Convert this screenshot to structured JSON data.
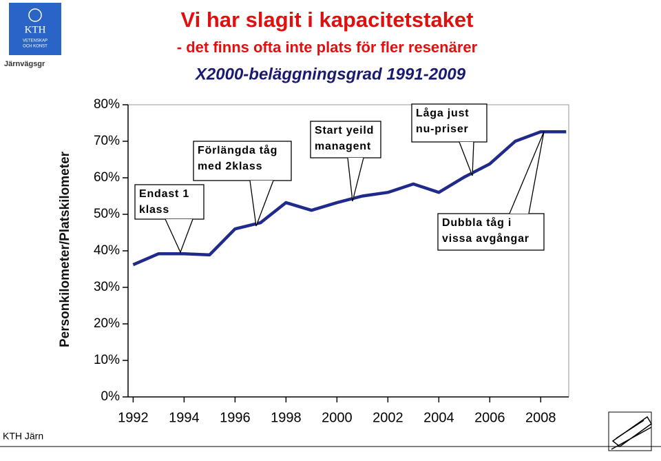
{
  "header": {
    "logo_text": [
      "KTH",
      "VETENSKAP",
      "OCH KONST"
    ],
    "dept": "Järnvägsgr",
    "title": "Vi har slagit i kapacitetstaket",
    "subtitle": "- det finns ofta inte plats för fler resenärer"
  },
  "chart_data": {
    "type": "line",
    "title": "X2000-beläggningsgrad 1991-2009",
    "y_label": "Personkilometer/Platskilometer",
    "x": [
      1992,
      1993,
      1994,
      1995,
      1996,
      1997,
      1998,
      1999,
      2000,
      2001,
      2002,
      2003,
      2004,
      2005,
      2006,
      2007,
      2008,
      2009
    ],
    "series": [
      {
        "color": "#1f2a8a",
        "values": [
          36.2,
          39.2,
          39.2,
          38.9,
          46,
          47.7,
          53.2,
          51.1,
          53.2,
          55,
          56,
          58.3,
          56,
          60.2,
          63.8,
          70,
          72.6,
          72.6
        ]
      }
    ],
    "xlim": [
      1991.8,
      2009.1
    ],
    "xticks": [
      1992,
      1994,
      1996,
      1998,
      2000,
      2002,
      2004,
      2006,
      2008
    ],
    "ylim": [
      0,
      80
    ],
    "yticks": [
      {
        "value": 0,
        "label": "0%"
      },
      {
        "value": 10,
        "label": "10%"
      },
      {
        "value": 20,
        "label": "20%"
      },
      {
        "value": 30,
        "label": "30%"
      },
      {
        "value": 40,
        "label": "40%"
      },
      {
        "value": 50,
        "label": "50%"
      },
      {
        "value": 60,
        "label": "60%"
      },
      {
        "value": 70,
        "label": "70%"
      },
      {
        "value": 80,
        "label": "80%"
      }
    ],
    "annotations": [
      {
        "lines": [
          "Endast 1",
          "klass"
        ]
      },
      {
        "lines": [
          "Förlängda tåg",
          "med 2klass"
        ]
      },
      {
        "lines": [
          "Start yeild",
          "managent"
        ]
      },
      {
        "lines": [
          "Låga just",
          "nu-priser"
        ]
      },
      {
        "lines": [
          "Dubbla tåg i",
          "vissa avgångar"
        ]
      }
    ]
  },
  "footer": "KTH Järn"
}
